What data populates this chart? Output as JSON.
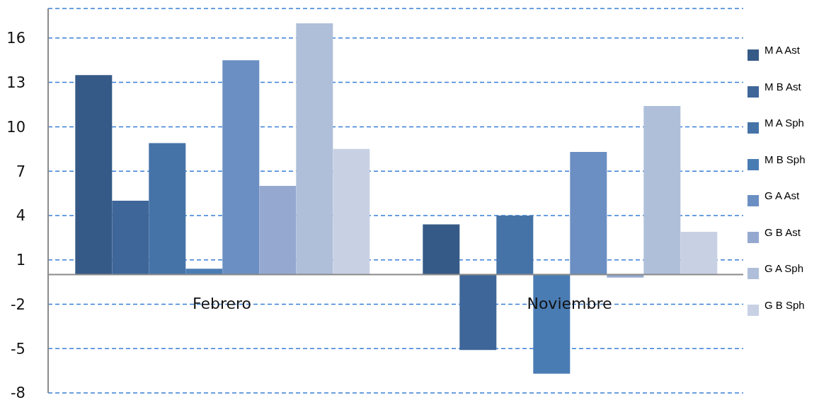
{
  "chart_data": {
    "type": "bar",
    "categories": [
      "Febrero",
      "Noviembre"
    ],
    "series": [
      {
        "name": "M A Ast",
        "color": "#365a87",
        "values": [
          13.5,
          3.4
        ]
      },
      {
        "name": "M B Ast",
        "color": "#3e6699",
        "values": [
          5,
          -5.1
        ]
      },
      {
        "name": "M A Sph",
        "color": "#4573a8",
        "values": [
          8.9,
          4
        ]
      },
      {
        "name": "M B Sph",
        "color": "#4a7cb4",
        "values": [
          0.4,
          -6.7
        ]
      },
      {
        "name": "G A Ast",
        "color": "#6b8fc2",
        "values": [
          14.5,
          8.3
        ]
      },
      {
        "name": "G B Ast",
        "color": "#95a9d0",
        "values": [
          6,
          -0.2
        ]
      },
      {
        "name": "G A Sph",
        "color": "#afbfda",
        "values": [
          17,
          11.4
        ]
      },
      {
        "name": "G B Sph",
        "color": "#c8d1e4",
        "values": [
          8.5,
          2.9
        ]
      }
    ],
    "ylim": [
      -8,
      18
    ],
    "yticks": [
      -8,
      -5,
      -2,
      1,
      4,
      7,
      10,
      13,
      16
    ],
    "grid": "y",
    "legend": "right"
  }
}
